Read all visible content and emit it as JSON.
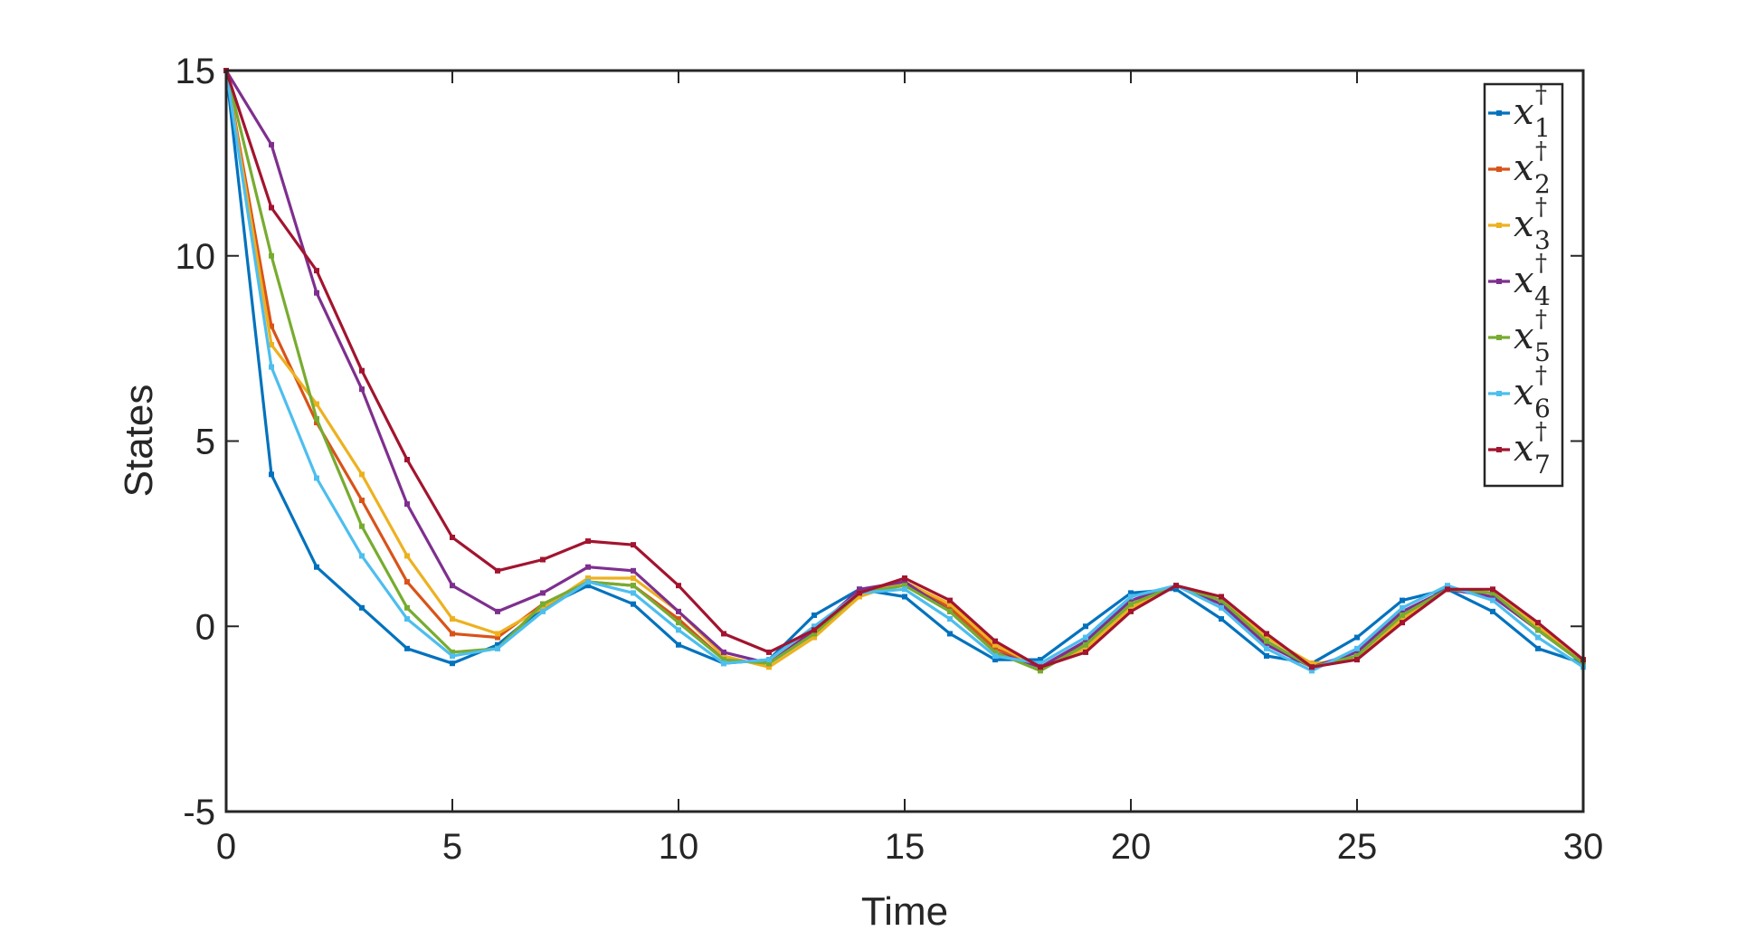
{
  "chart_data": {
    "type": "line",
    "xlabel": "Time",
    "ylabel": "States",
    "xlim": [
      0,
      30
    ],
    "ylim": [
      -5,
      15
    ],
    "x_ticks": [
      "0",
      "5",
      "10",
      "15",
      "20",
      "25",
      "30"
    ],
    "y_ticks": [
      "-5",
      "0",
      "5",
      "10",
      "15"
    ],
    "grid": false,
    "legend_position": "top-right",
    "x": [
      0,
      1,
      2,
      3,
      4,
      5,
      6,
      7,
      8,
      9,
      10,
      11,
      12,
      13,
      14,
      15,
      16,
      17,
      18,
      19,
      20,
      21,
      22,
      23,
      24,
      25,
      26,
      27,
      28,
      29,
      30
    ],
    "series": [
      {
        "name": "x",
        "sub": "1",
        "sup": "†",
        "color": "#0072BD",
        "values": [
          15,
          4.1,
          1.6,
          0.5,
          -0.6,
          -1.0,
          -0.5,
          0.5,
          1.1,
          0.6,
          -0.5,
          -1.0,
          -0.9,
          0.3,
          1.0,
          0.8,
          -0.2,
          -0.9,
          -0.9,
          0.0,
          0.9,
          1.0,
          0.2,
          -0.8,
          -1.0,
          -0.3,
          0.7,
          1.0,
          0.4,
          -0.6,
          -1.0
        ]
      },
      {
        "name": "x",
        "sub": "2",
        "sup": "†",
        "color": "#D95319",
        "values": [
          15,
          8.1,
          5.5,
          3.4,
          1.2,
          -0.2,
          -0.3,
          0.6,
          1.2,
          1.1,
          0.2,
          -0.9,
          -1.0,
          -0.2,
          0.9,
          1.2,
          0.5,
          -0.6,
          -1.1,
          -0.5,
          0.6,
          1.1,
          0.7,
          -0.4,
          -1.1,
          -0.8,
          0.3,
          1.0,
          0.9,
          -0.1,
          -1.0
        ]
      },
      {
        "name": "x",
        "sub": "3",
        "sup": "†",
        "color": "#EDB120",
        "values": [
          15,
          7.6,
          6.0,
          4.1,
          1.9,
          0.2,
          -0.2,
          0.5,
          1.3,
          1.3,
          0.4,
          -0.8,
          -1.1,
          -0.3,
          0.8,
          1.2,
          0.6,
          -0.5,
          -1.1,
          -0.6,
          0.5,
          1.1,
          0.7,
          -0.3,
          -1.0,
          -0.9,
          0.2,
          1.0,
          0.9,
          0.0,
          -1.0
        ]
      },
      {
        "name": "x",
        "sub": "4",
        "sup": "†",
        "color": "#7E2F8E",
        "values": [
          15,
          13.0,
          9.0,
          6.4,
          3.3,
          1.1,
          0.4,
          0.9,
          1.6,
          1.5,
          0.4,
          -0.7,
          -1.0,
          -0.1,
          1.0,
          1.2,
          0.4,
          -0.7,
          -1.1,
          -0.4,
          0.7,
          1.1,
          0.6,
          -0.5,
          -1.1,
          -0.7,
          0.4,
          1.0,
          0.8,
          -0.1,
          -1.0
        ]
      },
      {
        "name": "x",
        "sub": "5",
        "sup": "†",
        "color": "#77AC30",
        "values": [
          15,
          10.0,
          5.6,
          2.7,
          0.5,
          -0.7,
          -0.6,
          0.6,
          1.2,
          1.1,
          0.1,
          -0.9,
          -1.0,
          -0.2,
          0.9,
          1.1,
          0.4,
          -0.7,
          -1.2,
          -0.5,
          0.6,
          1.1,
          0.7,
          -0.4,
          -1.1,
          -0.8,
          0.3,
          1.0,
          0.9,
          -0.1,
          -1.0
        ]
      },
      {
        "name": "x",
        "sub": "6",
        "sup": "†",
        "color": "#4DBEEE",
        "values": [
          15,
          7.0,
          4.0,
          1.9,
          0.2,
          -0.8,
          -0.6,
          0.4,
          1.2,
          0.9,
          -0.1,
          -1.0,
          -0.9,
          0.0,
          0.9,
          1.0,
          0.2,
          -0.8,
          -1.0,
          -0.3,
          0.8,
          1.1,
          0.5,
          -0.6,
          -1.2,
          -0.6,
          0.5,
          1.1,
          0.7,
          -0.3,
          -1.1
        ]
      },
      {
        "name": "x",
        "sub": "7",
        "sup": "†",
        "color": "#A2142F",
        "values": [
          15,
          11.3,
          9.6,
          6.9,
          4.5,
          2.4,
          1.5,
          1.8,
          2.3,
          2.2,
          1.1,
          -0.2,
          -0.7,
          -0.1,
          0.9,
          1.3,
          0.7,
          -0.4,
          -1.1,
          -0.7,
          0.4,
          1.1,
          0.8,
          -0.2,
          -1.1,
          -0.9,
          0.1,
          1.0,
          1.0,
          0.1,
          -0.9
        ]
      }
    ]
  }
}
